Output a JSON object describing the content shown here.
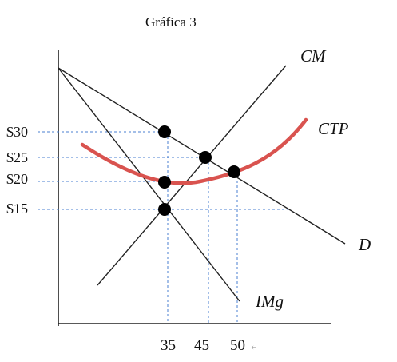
{
  "title": "Gráfica 3",
  "price_labels": [
    {
      "id": "p30",
      "text": "$30",
      "value": 30
    },
    {
      "id": "p25",
      "text": "$25",
      "value": 25
    },
    {
      "id": "p20",
      "text": "$20",
      "value": 20
    },
    {
      "id": "p15",
      "text": "$15",
      "value": 15
    }
  ],
  "quantity_labels": [
    {
      "id": "q35",
      "text": "35",
      "value": 35
    },
    {
      "id": "q45",
      "text": "45",
      "value": 45
    },
    {
      "id": "q50",
      "text": "50",
      "value": 50
    }
  ],
  "curve_labels": {
    "cm": "CM",
    "ctp": "CTP",
    "d": "D",
    "img": "IMg"
  },
  "return_mark": "↵",
  "colors": {
    "ctp_curve": "#d9534f",
    "guides": "#4a7fd0",
    "lines": "#222222"
  }
}
